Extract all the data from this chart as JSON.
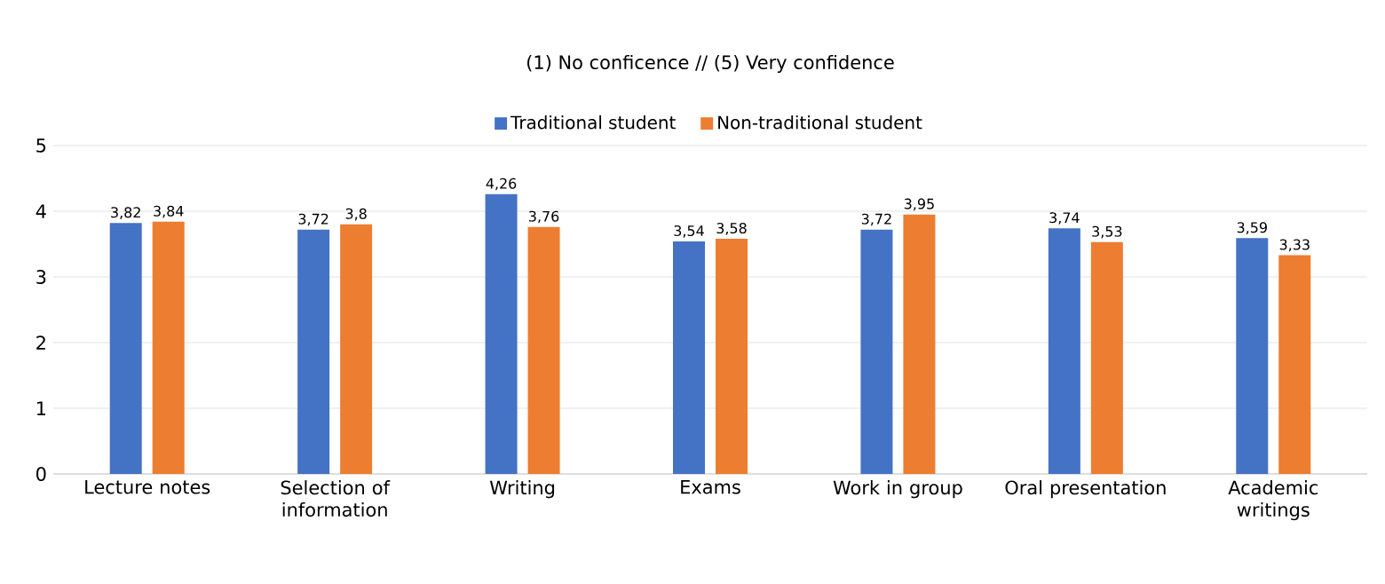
{
  "chart_data": {
    "type": "bar",
    "title": "(1) No conficence // (5) Very confidence",
    "categories": [
      "Lecture notes",
      "Selection of information",
      "Writing",
      "Exams",
      "Work in group",
      "Oral presentation",
      "Academic writings"
    ],
    "series": [
      {
        "name": "Traditional student",
        "color": "#4472c4",
        "values": [
          3.82,
          3.72,
          4.26,
          3.54,
          3.72,
          3.74,
          3.59
        ],
        "value_labels": [
          "3,82",
          "3,72",
          "4,26",
          "3,54",
          "3,72",
          "3,74",
          "3,59"
        ]
      },
      {
        "name": "Non-traditional student",
        "color": "#ed7d31",
        "values": [
          3.84,
          3.8,
          3.76,
          3.58,
          3.95,
          3.53,
          3.33
        ],
        "value_labels": [
          "3,84",
          "3,8",
          "3,76",
          "3,58",
          "3,95",
          "3,53",
          "3,33"
        ]
      }
    ],
    "ylim": [
      0,
      5
    ],
    "yticks": [
      0,
      1,
      2,
      3,
      4,
      5
    ],
    "grid": "y",
    "legend": "top"
  }
}
